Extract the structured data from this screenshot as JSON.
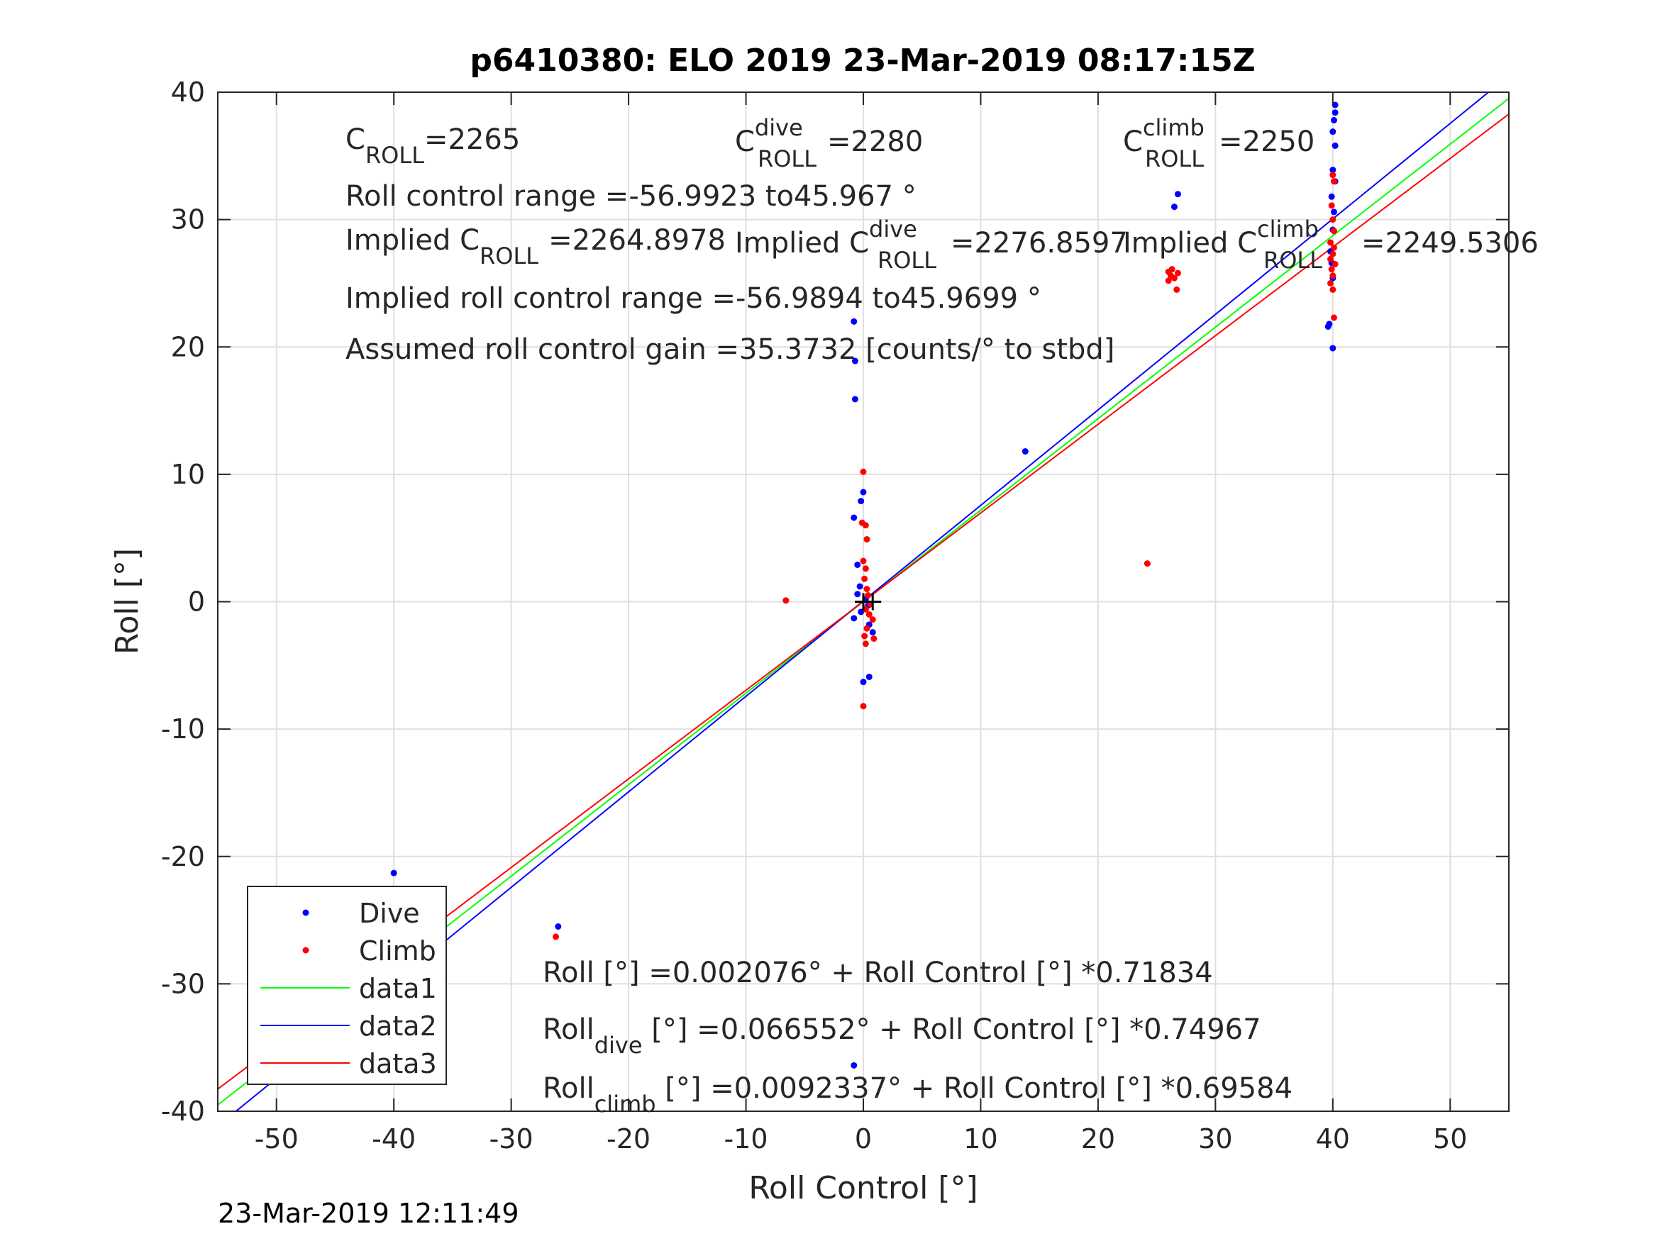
{
  "chart_data": {
    "type": "scatter",
    "title": "p6410380: ELO 2019 23-Mar-2019 08:17:15Z",
    "xlabel": "Roll Control [°]",
    "ylabel": "Roll [°]",
    "xlim": [
      -55,
      55
    ],
    "ylim": [
      -40,
      40
    ],
    "x_ticks": [
      -50,
      -40,
      -30,
      -20,
      -10,
      0,
      10,
      20,
      30,
      40,
      50
    ],
    "x_tick_labels": [
      "-50",
      "-40",
      "-30",
      "-20",
      "-10",
      "0",
      "10",
      "20",
      "30",
      "40",
      "50"
    ],
    "y_ticks": [
      -40,
      -30,
      -20,
      -10,
      0,
      10,
      20,
      30,
      40
    ],
    "y_tick_labels": [
      "-40",
      "-30",
      "-20",
      "-10",
      "0",
      "10",
      "20",
      "30",
      "40"
    ],
    "grid": true,
    "legend_position": "bottom-left",
    "timestamp": "23-Mar-2019 12:11:49",
    "series": [
      {
        "name": "Dive",
        "kind": "markers",
        "color": "#0000ff",
        "points": [
          [
            -40,
            -21.3
          ],
          [
            -39.8,
            -26.2
          ],
          [
            -39.7,
            -26.8
          ],
          [
            -39.9,
            -27.3
          ],
          [
            -39.6,
            -26.5
          ],
          [
            -39.8,
            -27.8
          ],
          [
            -40,
            -27.0
          ],
          [
            -39.7,
            -28.0
          ],
          [
            -39.9,
            -25.9
          ],
          [
            -39.6,
            -27.5
          ],
          [
            -26,
            -25.5
          ],
          [
            -0.8,
            -36.4
          ],
          [
            -0.8,
            22.0
          ],
          [
            -0.7,
            18.9
          ],
          [
            -0.7,
            15.9
          ],
          [
            0,
            8.6
          ],
          [
            -0.2,
            7.9
          ],
          [
            -0.8,
            6.6
          ],
          [
            -0.5,
            2.9
          ],
          [
            -0.3,
            1.2
          ],
          [
            -0.5,
            0.6
          ],
          [
            0.2,
            0.2
          ],
          [
            0.4,
            -0.3
          ],
          [
            -0.2,
            -0.8
          ],
          [
            -0.8,
            -1.3
          ],
          [
            0.5,
            -1.8
          ],
          [
            0.8,
            -2.4
          ],
          [
            0,
            -6.3
          ],
          [
            0.5,
            -5.9
          ],
          [
            13.8,
            11.8
          ],
          [
            26.5,
            31.0
          ],
          [
            26.8,
            32.0
          ],
          [
            40.2,
            39.0
          ],
          [
            40.2,
            38.4
          ],
          [
            40.1,
            37.8
          ],
          [
            40.0,
            36.9
          ],
          [
            40.2,
            35.8
          ],
          [
            40.0,
            33.9
          ],
          [
            40.2,
            33.0
          ],
          [
            39.9,
            31.8
          ],
          [
            40.1,
            30.6
          ],
          [
            40.0,
            29.2
          ],
          [
            39.8,
            27.5
          ],
          [
            39.9,
            26.6
          ],
          [
            40.0,
            25.4
          ],
          [
            39.7,
            21.8
          ],
          [
            39.6,
            21.6
          ],
          [
            40.0,
            19.9
          ]
        ]
      },
      {
        "name": "Climb",
        "kind": "markers",
        "color": "#ff0000",
        "points": [
          [
            -40,
            -25.2
          ],
          [
            -39.9,
            -27.8
          ],
          [
            -40,
            -28.6
          ],
          [
            -39.8,
            -29.2
          ],
          [
            -40,
            -29.6
          ],
          [
            -26.2,
            -26.3
          ],
          [
            -6.6,
            0.1
          ],
          [
            0,
            10.2
          ],
          [
            -0.1,
            6.2
          ],
          [
            0.2,
            6.0
          ],
          [
            0.3,
            4.9
          ],
          [
            0,
            3.2
          ],
          [
            0.2,
            2.6
          ],
          [
            0.1,
            1.8
          ],
          [
            0.3,
            1.0
          ],
          [
            0.4,
            0.5
          ],
          [
            0.6,
            -0.2
          ],
          [
            0.2,
            -0.6
          ],
          [
            0.5,
            -1.0
          ],
          [
            0.8,
            -1.4
          ],
          [
            0.3,
            -2.1
          ],
          [
            0.1,
            -2.7
          ],
          [
            0.9,
            -2.9
          ],
          [
            0.2,
            -3.3
          ],
          [
            0,
            -8.2
          ],
          [
            24.2,
            3.0
          ],
          [
            26.0,
            25.9
          ],
          [
            26.2,
            25.6
          ],
          [
            26.5,
            25.4
          ],
          [
            26.8,
            25.8
          ],
          [
            26.3,
            26.1
          ],
          [
            26.0,
            25.2
          ],
          [
            26.7,
            24.5
          ],
          [
            40.0,
            33.5
          ],
          [
            40.1,
            33.0
          ],
          [
            39.9,
            31.1
          ],
          [
            40.0,
            30.0
          ],
          [
            40.1,
            29.1
          ],
          [
            39.8,
            28.2
          ],
          [
            40.1,
            27.8
          ],
          [
            40.0,
            27.3
          ],
          [
            39.8,
            26.9
          ],
          [
            40.2,
            26.5
          ],
          [
            39.9,
            26.1
          ],
          [
            40.0,
            25.6
          ],
          [
            39.8,
            25.0
          ],
          [
            40.0,
            24.5
          ],
          [
            40.1,
            22.3
          ]
        ]
      },
      {
        "name": "data1",
        "kind": "line",
        "color": "#00ff00",
        "intercept": 0.002076,
        "slope": 0.71834
      },
      {
        "name": "data2",
        "kind": "line",
        "color": "#0000ff",
        "intercept": 0.066552,
        "slope": 0.74967
      },
      {
        "name": "data3",
        "kind": "line",
        "color": "#ff0000",
        "intercept": 0.0092337,
        "slope": 0.69584
      }
    ],
    "center_marker": {
      "points": [
        [
          0,
          0
        ],
        [
          0.8,
          0
        ]
      ],
      "color": "#000000"
    },
    "annotations": {
      "c_roll": {
        "base": "C",
        "sub": "ROLL",
        "value": "=2265"
      },
      "c_roll_dive": {
        "base": "C",
        "sup": "dive",
        "sub": "ROLL",
        "value": "=2280"
      },
      "c_roll_climb": {
        "base": "C",
        "sup": "climb",
        "sub": "ROLL",
        "value": "=2250"
      },
      "roll_control_range": "Roll control range =-56.9923 to45.967 °",
      "implied_c_roll": {
        "base": "Implied C",
        "sub": "ROLL",
        "value": "=2264.8978"
      },
      "implied_c_roll_dive": {
        "base": "Implied C",
        "sup": "dive",
        "sub": "ROLL",
        "value": "=2276.8597"
      },
      "implied_c_roll_climb": {
        "base": "Implied C",
        "sup": "climb",
        "sub": "ROLL",
        "value": "=2249.5306"
      },
      "implied_roll_control_range": "Implied roll control range =-56.9894 to45.9699 °",
      "assumed_gain": "Assumed roll control gain =35.3732 [counts/° to stbd]",
      "fit_all": "Roll [°] =0.002076° + Roll Control [°] *0.71834",
      "fit_dive": {
        "base": "Roll",
        "sub": "dive",
        "value": " [°] =0.066552° + Roll Control [°] *0.74967"
      },
      "fit_climb": {
        "base": "Roll",
        "sub": "climb",
        "value": " [°] =0.0092337° + Roll Control [°] *0.69584"
      }
    }
  }
}
